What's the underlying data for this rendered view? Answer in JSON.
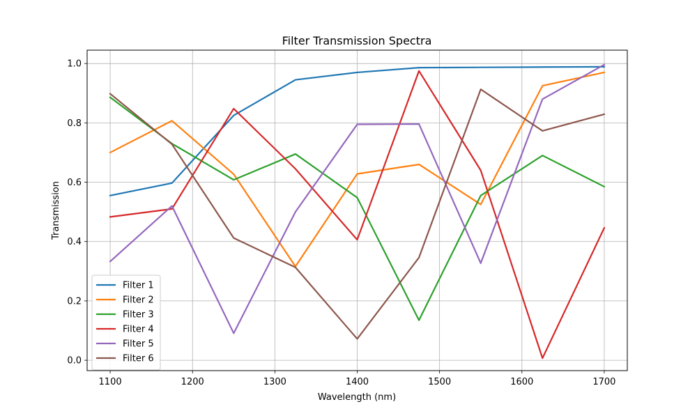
{
  "chart_data": {
    "type": "line",
    "title": "Filter Transmission Spectra",
    "xlabel": "Wavelength (nm)",
    "ylabel": "Transmission",
    "xlim": [
      1072,
      1728
    ],
    "ylim": [
      -0.035,
      1.045
    ],
    "x": [
      1100,
      1175,
      1250,
      1325,
      1400,
      1475,
      1550,
      1625,
      1700
    ],
    "xticks": [
      1100,
      1200,
      1300,
      1400,
      1500,
      1600,
      1700
    ],
    "yticks": [
      0.0,
      0.2,
      0.4,
      0.6,
      0.8,
      1.0
    ],
    "grid": true,
    "legend_position": "lower-left",
    "series": [
      {
        "name": "Filter 1",
        "color": "#1f77b4",
        "values": [
          0.555,
          0.597,
          0.825,
          0.945,
          0.97,
          0.986,
          0.987,
          0.988,
          0.989
        ]
      },
      {
        "name": "Filter 2",
        "color": "#ff7f0e",
        "values": [
          0.7,
          0.807,
          0.627,
          0.316,
          0.628,
          0.66,
          0.525,
          0.925,
          0.97
        ]
      },
      {
        "name": "Filter 3",
        "color": "#2ca02c",
        "values": [
          0.886,
          0.73,
          0.608,
          0.695,
          0.548,
          0.135,
          0.555,
          0.69,
          0.585
        ]
      },
      {
        "name": "Filter 4",
        "color": "#d62728",
        "values": [
          0.483,
          0.51,
          0.848,
          0.645,
          0.406,
          0.975,
          0.64,
          0.007,
          0.446
        ]
      },
      {
        "name": "Filter 5",
        "color": "#9467bd",
        "values": [
          0.333,
          0.52,
          0.091,
          0.5,
          0.795,
          0.796,
          0.327,
          0.88,
          0.996
        ]
      },
      {
        "name": "Filter 6",
        "color": "#8c564b",
        "values": [
          0.898,
          0.728,
          0.412,
          0.313,
          0.072,
          0.346,
          0.913,
          0.773,
          0.829
        ]
      }
    ]
  }
}
